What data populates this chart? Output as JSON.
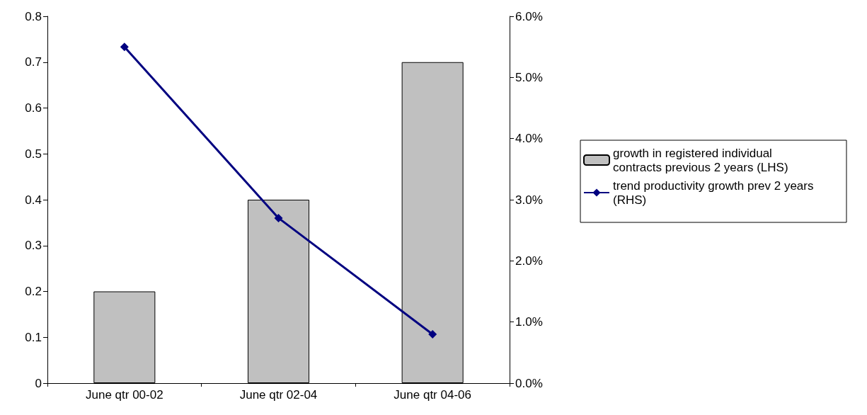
{
  "chart_data": {
    "type": "bar",
    "categories": [
      "June qtr 00-02",
      "June qtr 02-04",
      "June qtr 04-06"
    ],
    "series": [
      {
        "name": "growth in registered individual contracts previous 2 years (LHS)",
        "color": "#c0c0c0",
        "values": [
          0.2,
          0.4,
          0.7
        ]
      },
      {
        "name": "trend productivity growth prev 2 years (RHS)",
        "type": "line",
        "axis": "y2",
        "color": "#000080",
        "values": [
          5.5,
          2.7,
          0.8
        ]
      }
    ],
    "ylim": [
      0,
      0.8
    ],
    "yticks": [
      0,
      0.1,
      0.2,
      0.3,
      0.4,
      0.5,
      0.6,
      0.7,
      0.8
    ],
    "y2lim": [
      0,
      6
    ],
    "y2ticks": [
      {
        "value": 0,
        "label": "0.0%"
      },
      {
        "value": 1,
        "label": "1.0%"
      },
      {
        "value": 2,
        "label": "2.0%"
      },
      {
        "value": 3,
        "label": "3.0%"
      },
      {
        "value": 4,
        "label": "4.0%"
      },
      {
        "value": 5,
        "label": "5.0%"
      },
      {
        "value": 6,
        "label": "6.0%"
      }
    ],
    "grid": false,
    "legend": "right",
    "marker": "diamond",
    "line_style": "solid"
  }
}
